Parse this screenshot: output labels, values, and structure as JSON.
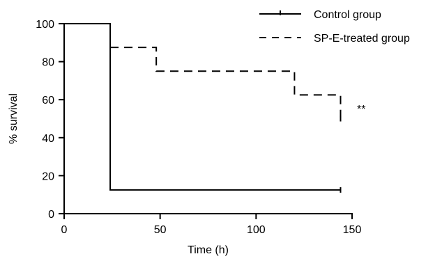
{
  "chart_data": {
    "type": "line",
    "title": "",
    "xlabel": "Time (h)",
    "ylabel": "% survival",
    "xlim": [
      0,
      150
    ],
    "ylim": [
      0,
      100
    ],
    "x_ticks": [
      0,
      50,
      100,
      150
    ],
    "y_ticks": [
      0,
      20,
      40,
      60,
      80,
      100
    ],
    "grid": false,
    "legend_position": "top-right",
    "series": [
      {
        "name": "Control group",
        "style": "solid",
        "color": "#000000",
        "points": [
          [
            0,
            100
          ],
          [
            24,
            100
          ],
          [
            24,
            12.5
          ],
          [
            144,
            12.5
          ]
        ]
      },
      {
        "name": "SP-E-treated group",
        "style": "dashed",
        "color": "#000000",
        "points": [
          [
            24,
            87.5
          ],
          [
            48,
            87.5
          ],
          [
            48,
            75
          ],
          [
            120,
            75
          ],
          [
            120,
            62.5
          ],
          [
            144,
            62.5
          ],
          [
            144,
            50
          ]
        ]
      }
    ],
    "annotations": [
      {
        "text": "**",
        "x": 150,
        "y": 55
      }
    ]
  }
}
